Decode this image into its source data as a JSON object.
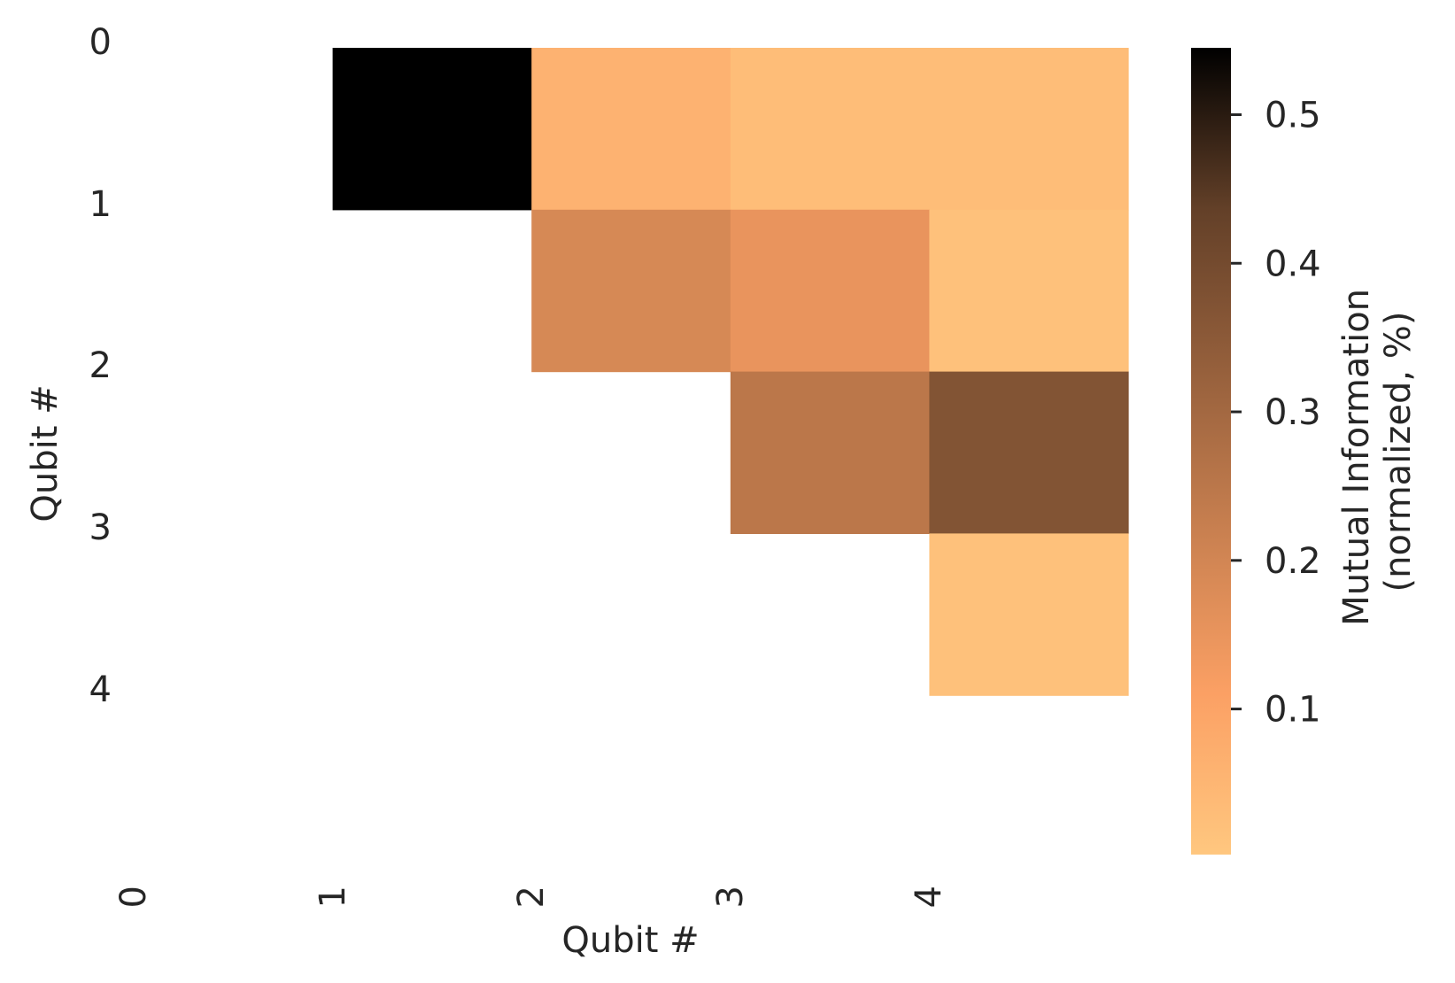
{
  "chart_data": {
    "type": "heatmap",
    "xlabel": "Qubit #",
    "ylabel": "Qubit #",
    "x_ticks": [
      "0",
      "1",
      "2",
      "3",
      "4"
    ],
    "y_ticks": [
      "0",
      "1",
      "2",
      "3",
      "4"
    ],
    "colorbar": {
      "label_line1": "Mutual Information",
      "label_line2": "(normalized, %)",
      "range": [
        0.002,
        0.545
      ],
      "ticks": [
        "0.1",
        "0.2",
        "0.3",
        "0.4",
        "0.5"
      ],
      "tick_values": [
        0.1,
        0.2,
        0.3,
        0.4,
        0.5
      ],
      "colormap": "copper_r"
    },
    "cells": [
      {
        "row": 0,
        "col": 1,
        "value": 0.545
      },
      {
        "row": 0,
        "col": 2,
        "value": 0.06
      },
      {
        "row": 0,
        "col": 3,
        "value": 0.03
      },
      {
        "row": 0,
        "col": 4,
        "value": 0.03
      },
      {
        "row": 1,
        "col": 2,
        "value": 0.19
      },
      {
        "row": 1,
        "col": 3,
        "value": 0.15
      },
      {
        "row": 1,
        "col": 4,
        "value": 0.02
      },
      {
        "row": 2,
        "col": 3,
        "value": 0.25
      },
      {
        "row": 2,
        "col": 4,
        "value": 0.37
      },
      {
        "row": 3,
        "col": 4,
        "value": 0.02
      }
    ]
  }
}
